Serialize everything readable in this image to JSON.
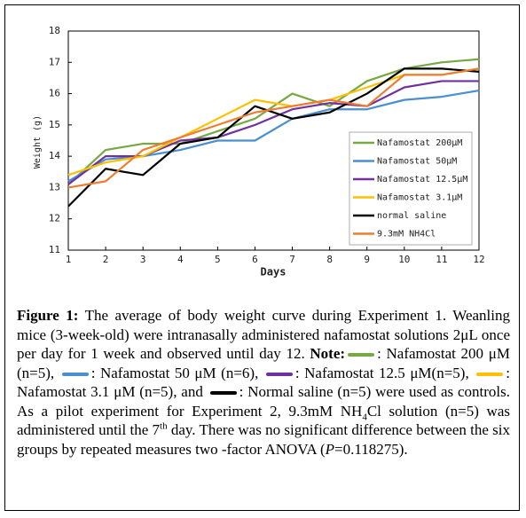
{
  "chart_data": {
    "type": "line",
    "x_label": "Days",
    "y_label": "Weight (g)",
    "x": [
      1,
      2,
      3,
      4,
      5,
      6,
      7,
      8,
      9,
      10,
      11,
      12
    ],
    "xlim": [
      1,
      12
    ],
    "xticks": [
      1,
      2,
      3,
      4,
      5,
      6,
      7,
      8,
      9,
      10,
      11,
      12
    ],
    "ylim": [
      11,
      18
    ],
    "yticks": [
      11,
      12,
      13,
      14,
      15,
      16,
      17,
      18
    ],
    "legend_position": "lower right",
    "series": [
      {
        "name": "Nafamostat 200μM",
        "color": "#77a844",
        "values": [
          13.1,
          14.2,
          14.4,
          14.4,
          14.8,
          15.2,
          16.0,
          15.6,
          16.4,
          16.8,
          17.0,
          17.1
        ]
      },
      {
        "name": "Nafamostat 50μM",
        "color": "#4a8fcf",
        "values": [
          13.2,
          13.9,
          14.0,
          14.2,
          14.5,
          14.5,
          15.2,
          15.5,
          15.5,
          15.8,
          15.9,
          16.1
        ]
      },
      {
        "name": "Nafamostat 12.5μM",
        "color": "#7030a0",
        "values": [
          13.1,
          14.0,
          14.0,
          14.5,
          14.6,
          15.0,
          15.5,
          15.7,
          15.6,
          16.2,
          16.4,
          16.4
        ]
      },
      {
        "name": "Nafamostat 3.1μM",
        "color": "#ffc000",
        "values": [
          13.4,
          13.8,
          14.0,
          14.6,
          15.2,
          15.8,
          15.6,
          15.8,
          16.2,
          16.6,
          16.6,
          16.8
        ]
      },
      {
        "name": "normal saline",
        "color": "#000000",
        "values": [
          12.4,
          13.6,
          13.4,
          14.4,
          14.6,
          15.6,
          15.2,
          15.4,
          16.0,
          16.8,
          16.8,
          16.7
        ]
      },
      {
        "name": "9.3mM NH4Cl",
        "color": "#ed7d31",
        "values": [
          13.0,
          13.2,
          14.2,
          14.6,
          15.0,
          15.4,
          15.6,
          15.8,
          15.6,
          16.6,
          16.6,
          16.8
        ]
      }
    ]
  },
  "caption": {
    "label": "Figure 1:",
    "intro": " The average of body weight curve during Experiment 1. Weanling mice (3-week-old) were intranasally administered nafamostat solutions 2μL once per day for 1 week and observed until day 12. ",
    "note": "Note:",
    "items": [
      ": Nafamostat 200 μM (n=5), ",
      ": Nafamostat 50 μM (n=6), ",
      ": Nafamostat 12.5 μM(n=5), ",
      ": Nafamostat 3.1 μM (n=5), and ",
      ": Normal saline (n=5) were used as controls."
    ],
    "pilot": " As a pilot experiment for Experiment 2, 9.3mM NH",
    "sub": "4",
    "pilot2": "Cl solution (n=5) was administered until the 7",
    "sup": "th",
    "tail1": " day. There was no significant difference between the six groups by repeated measures two -factor ANOVA (",
    "p": "P",
    "tail2": "=0.118275)."
  }
}
